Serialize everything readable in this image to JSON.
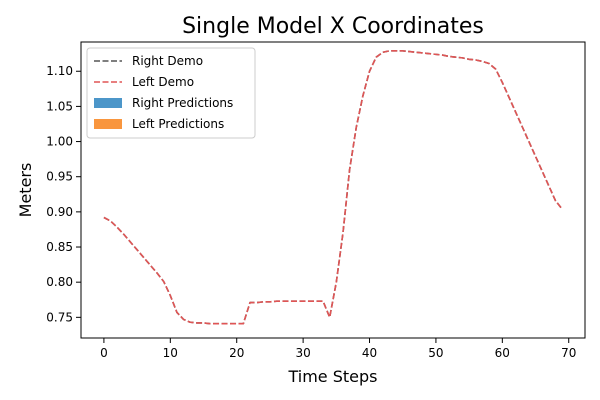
{
  "chart_data": {
    "type": "line",
    "title": "Single Model X Coordinates",
    "xlabel": "Time Steps",
    "ylabel": "Meters",
    "xlim": [
      -3.45,
      72.45
    ],
    "ylim": [
      0.7206,
      1.1416
    ],
    "xticks": [
      0,
      10,
      20,
      30,
      40,
      50,
      60,
      70
    ],
    "yticks": [
      0.75,
      0.8,
      0.85,
      0.9,
      0.95,
      1.0,
      1.05,
      1.1
    ],
    "grid": false,
    "legend_position": "top-left",
    "legend": [
      {
        "label": "Right Demo",
        "kind": "line",
        "style": "dashed",
        "color": "#555555"
      },
      {
        "label": "Left Demo",
        "kind": "line",
        "style": "dashed",
        "color": "#e05555"
      },
      {
        "label": "Right Predictions",
        "kind": "patch",
        "color": "#4c96c9"
      },
      {
        "label": "Left Predictions",
        "kind": "patch",
        "color": "#f9963e"
      }
    ],
    "series": [
      {
        "name": "Right Demo",
        "color": "#555555",
        "style": "dashed",
        "x": [
          0,
          1,
          2,
          3,
          4,
          5,
          6,
          7,
          8,
          9,
          10,
          11,
          12,
          13,
          14,
          15,
          16,
          17,
          18,
          19,
          20,
          21,
          22,
          23,
          24,
          25,
          26,
          27,
          28,
          29,
          30,
          31,
          32,
          33,
          34,
          35,
          36,
          37,
          38,
          39,
          40,
          41,
          42,
          43,
          44,
          45,
          46,
          47,
          48,
          49,
          50,
          51,
          52,
          53,
          54,
          55,
          56,
          57,
          58,
          59,
          60,
          61,
          62,
          63,
          64,
          65,
          66,
          67,
          68,
          69
        ],
        "y": [
          0.892,
          0.887,
          0.878,
          0.868,
          0.857,
          0.846,
          0.835,
          0.824,
          0.813,
          0.801,
          0.781,
          0.757,
          0.747,
          0.743,
          0.742,
          0.742,
          0.741,
          0.741,
          0.741,
          0.741,
          0.741,
          0.741,
          0.771,
          0.771,
          0.772,
          0.772,
          0.773,
          0.773,
          0.773,
          0.773,
          0.773,
          0.773,
          0.773,
          0.773,
          0.75,
          0.8,
          0.87,
          0.96,
          1.02,
          1.065,
          1.1,
          1.12,
          1.127,
          1.129,
          1.129,
          1.129,
          1.128,
          1.127,
          1.126,
          1.125,
          1.124,
          1.123,
          1.121,
          1.12,
          1.119,
          1.117,
          1.116,
          1.114,
          1.111,
          1.103,
          1.084,
          1.063,
          1.042,
          1.021,
          1.0,
          0.979,
          0.958,
          0.937,
          0.916,
          0.904
        ]
      },
      {
        "name": "Left Demo",
        "color": "#e05555",
        "style": "dashed",
        "x": [
          0,
          1,
          2,
          3,
          4,
          5,
          6,
          7,
          8,
          9,
          10,
          11,
          12,
          13,
          14,
          15,
          16,
          17,
          18,
          19,
          20,
          21,
          22,
          23,
          24,
          25,
          26,
          27,
          28,
          29,
          30,
          31,
          32,
          33,
          34,
          35,
          36,
          37,
          38,
          39,
          40,
          41,
          42,
          43,
          44,
          45,
          46,
          47,
          48,
          49,
          50,
          51,
          52,
          53,
          54,
          55,
          56,
          57,
          58,
          59,
          60,
          61,
          62,
          63,
          64,
          65,
          66,
          67,
          68,
          69
        ],
        "y": [
          0.892,
          0.887,
          0.878,
          0.868,
          0.857,
          0.846,
          0.835,
          0.824,
          0.813,
          0.801,
          0.781,
          0.757,
          0.747,
          0.743,
          0.742,
          0.742,
          0.741,
          0.741,
          0.741,
          0.741,
          0.741,
          0.741,
          0.771,
          0.771,
          0.772,
          0.772,
          0.773,
          0.773,
          0.773,
          0.773,
          0.773,
          0.773,
          0.773,
          0.773,
          0.75,
          0.8,
          0.87,
          0.96,
          1.02,
          1.065,
          1.1,
          1.12,
          1.127,
          1.129,
          1.129,
          1.129,
          1.128,
          1.127,
          1.126,
          1.125,
          1.124,
          1.123,
          1.121,
          1.12,
          1.119,
          1.117,
          1.116,
          1.114,
          1.111,
          1.103,
          1.084,
          1.063,
          1.042,
          1.021,
          1.0,
          0.979,
          0.958,
          0.937,
          0.916,
          0.904
        ]
      }
    ]
  }
}
